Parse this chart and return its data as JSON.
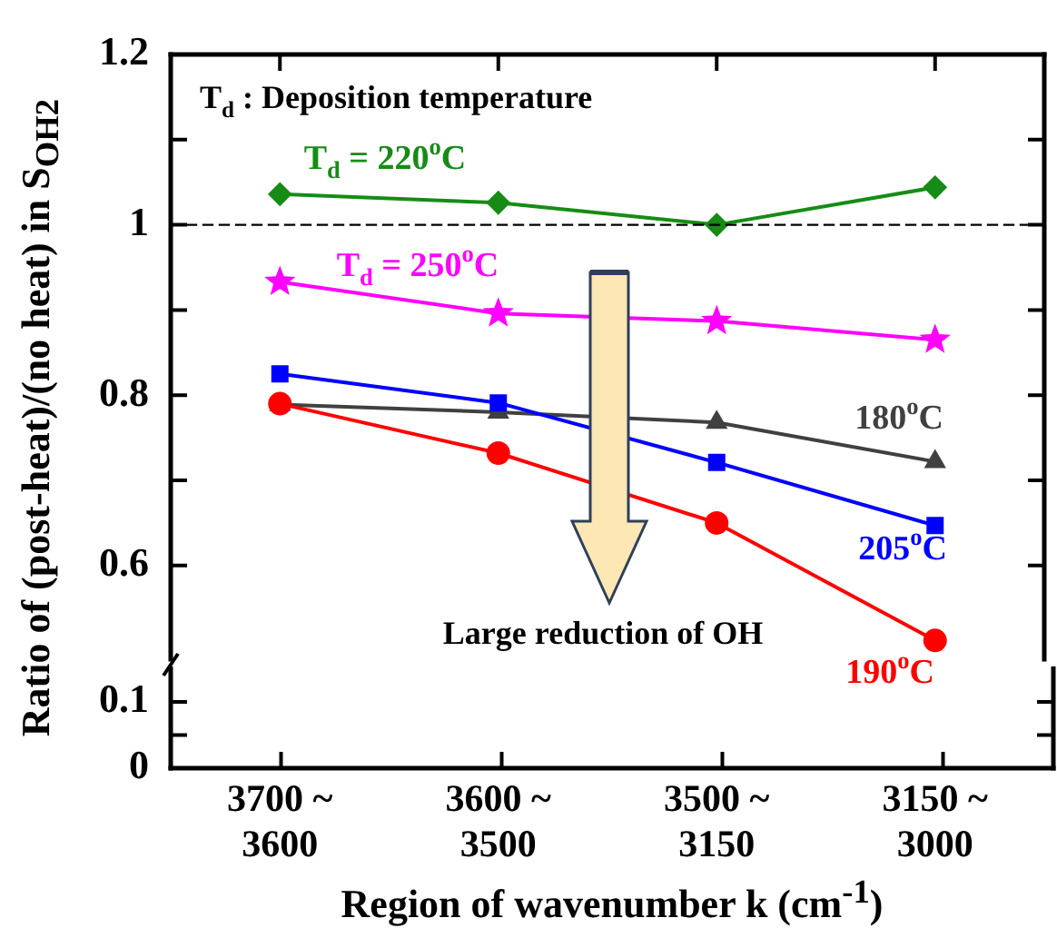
{
  "chart_data": [
    {
      "type": "line",
      "categories": [
        "3700 ~ 3600",
        "3600 ~ 3500",
        "3500 ~ 3150",
        "3150 ~ 3000"
      ],
      "ylabel": "Ratio of (post-heat)/(no heat) in S$_{OH2}$",
      "ylim": [
        0.49,
        1.2
      ],
      "yticks": [
        0.6,
        {
          "value": 0.7,
          "label": null
        },
        0.8,
        {
          "value": 0.9,
          "label": null
        },
        1,
        {
          "value": 1.1,
          "label": null
        },
        1.2
      ],
      "series": [
        {
          "name": "T$_{d}$ = 220$^{o}$C",
          "color": "#168c16",
          "marker": "diamond",
          "values": [
            1.036,
            1.026,
            1.0,
            1.044
          ]
        },
        {
          "name": "T$_{d}$ = 250$^{o}$C",
          "color": "#ff00ff",
          "marker": "star",
          "values": [
            0.933,
            0.896,
            0.887,
            0.865
          ]
        },
        {
          "name": "180$^{o}$C",
          "color": "#404040",
          "marker": "triangle",
          "values": [
            0.789,
            0.78,
            0.768,
            0.722
          ]
        },
        {
          "name": "205$^{o}$C",
          "color": "#0000ff",
          "marker": "square",
          "values": [
            0.825,
            0.791,
            0.721,
            0.647
          ]
        },
        {
          "name": "190$^{o}$C",
          "color": "#ff0000",
          "marker": "circle",
          "values": [
            0.79,
            0.732,
            0.65,
            0.512
          ]
        }
      ],
      "ref_lines": [
        {
          "axis": "y",
          "value": 1,
          "color": "#000000",
          "line_style": "dashed"
        }
      ],
      "annotations": [
        "T$_{d}$ : Deposition temperature",
        "Large reduction of OH"
      ],
      "xlabel": "Region of wavenumber k (cm$^{-1}$)"
    },
    {
      "type": "line",
      "categories": [
        null,
        null,
        null,
        null
      ],
      "tick_labels": "y",
      "ylim": [
        0,
        0.15
      ],
      "yticks": [
        0,
        {
          "value": 0.05,
          "label": null
        },
        0.1
      ]
    }
  ]
}
